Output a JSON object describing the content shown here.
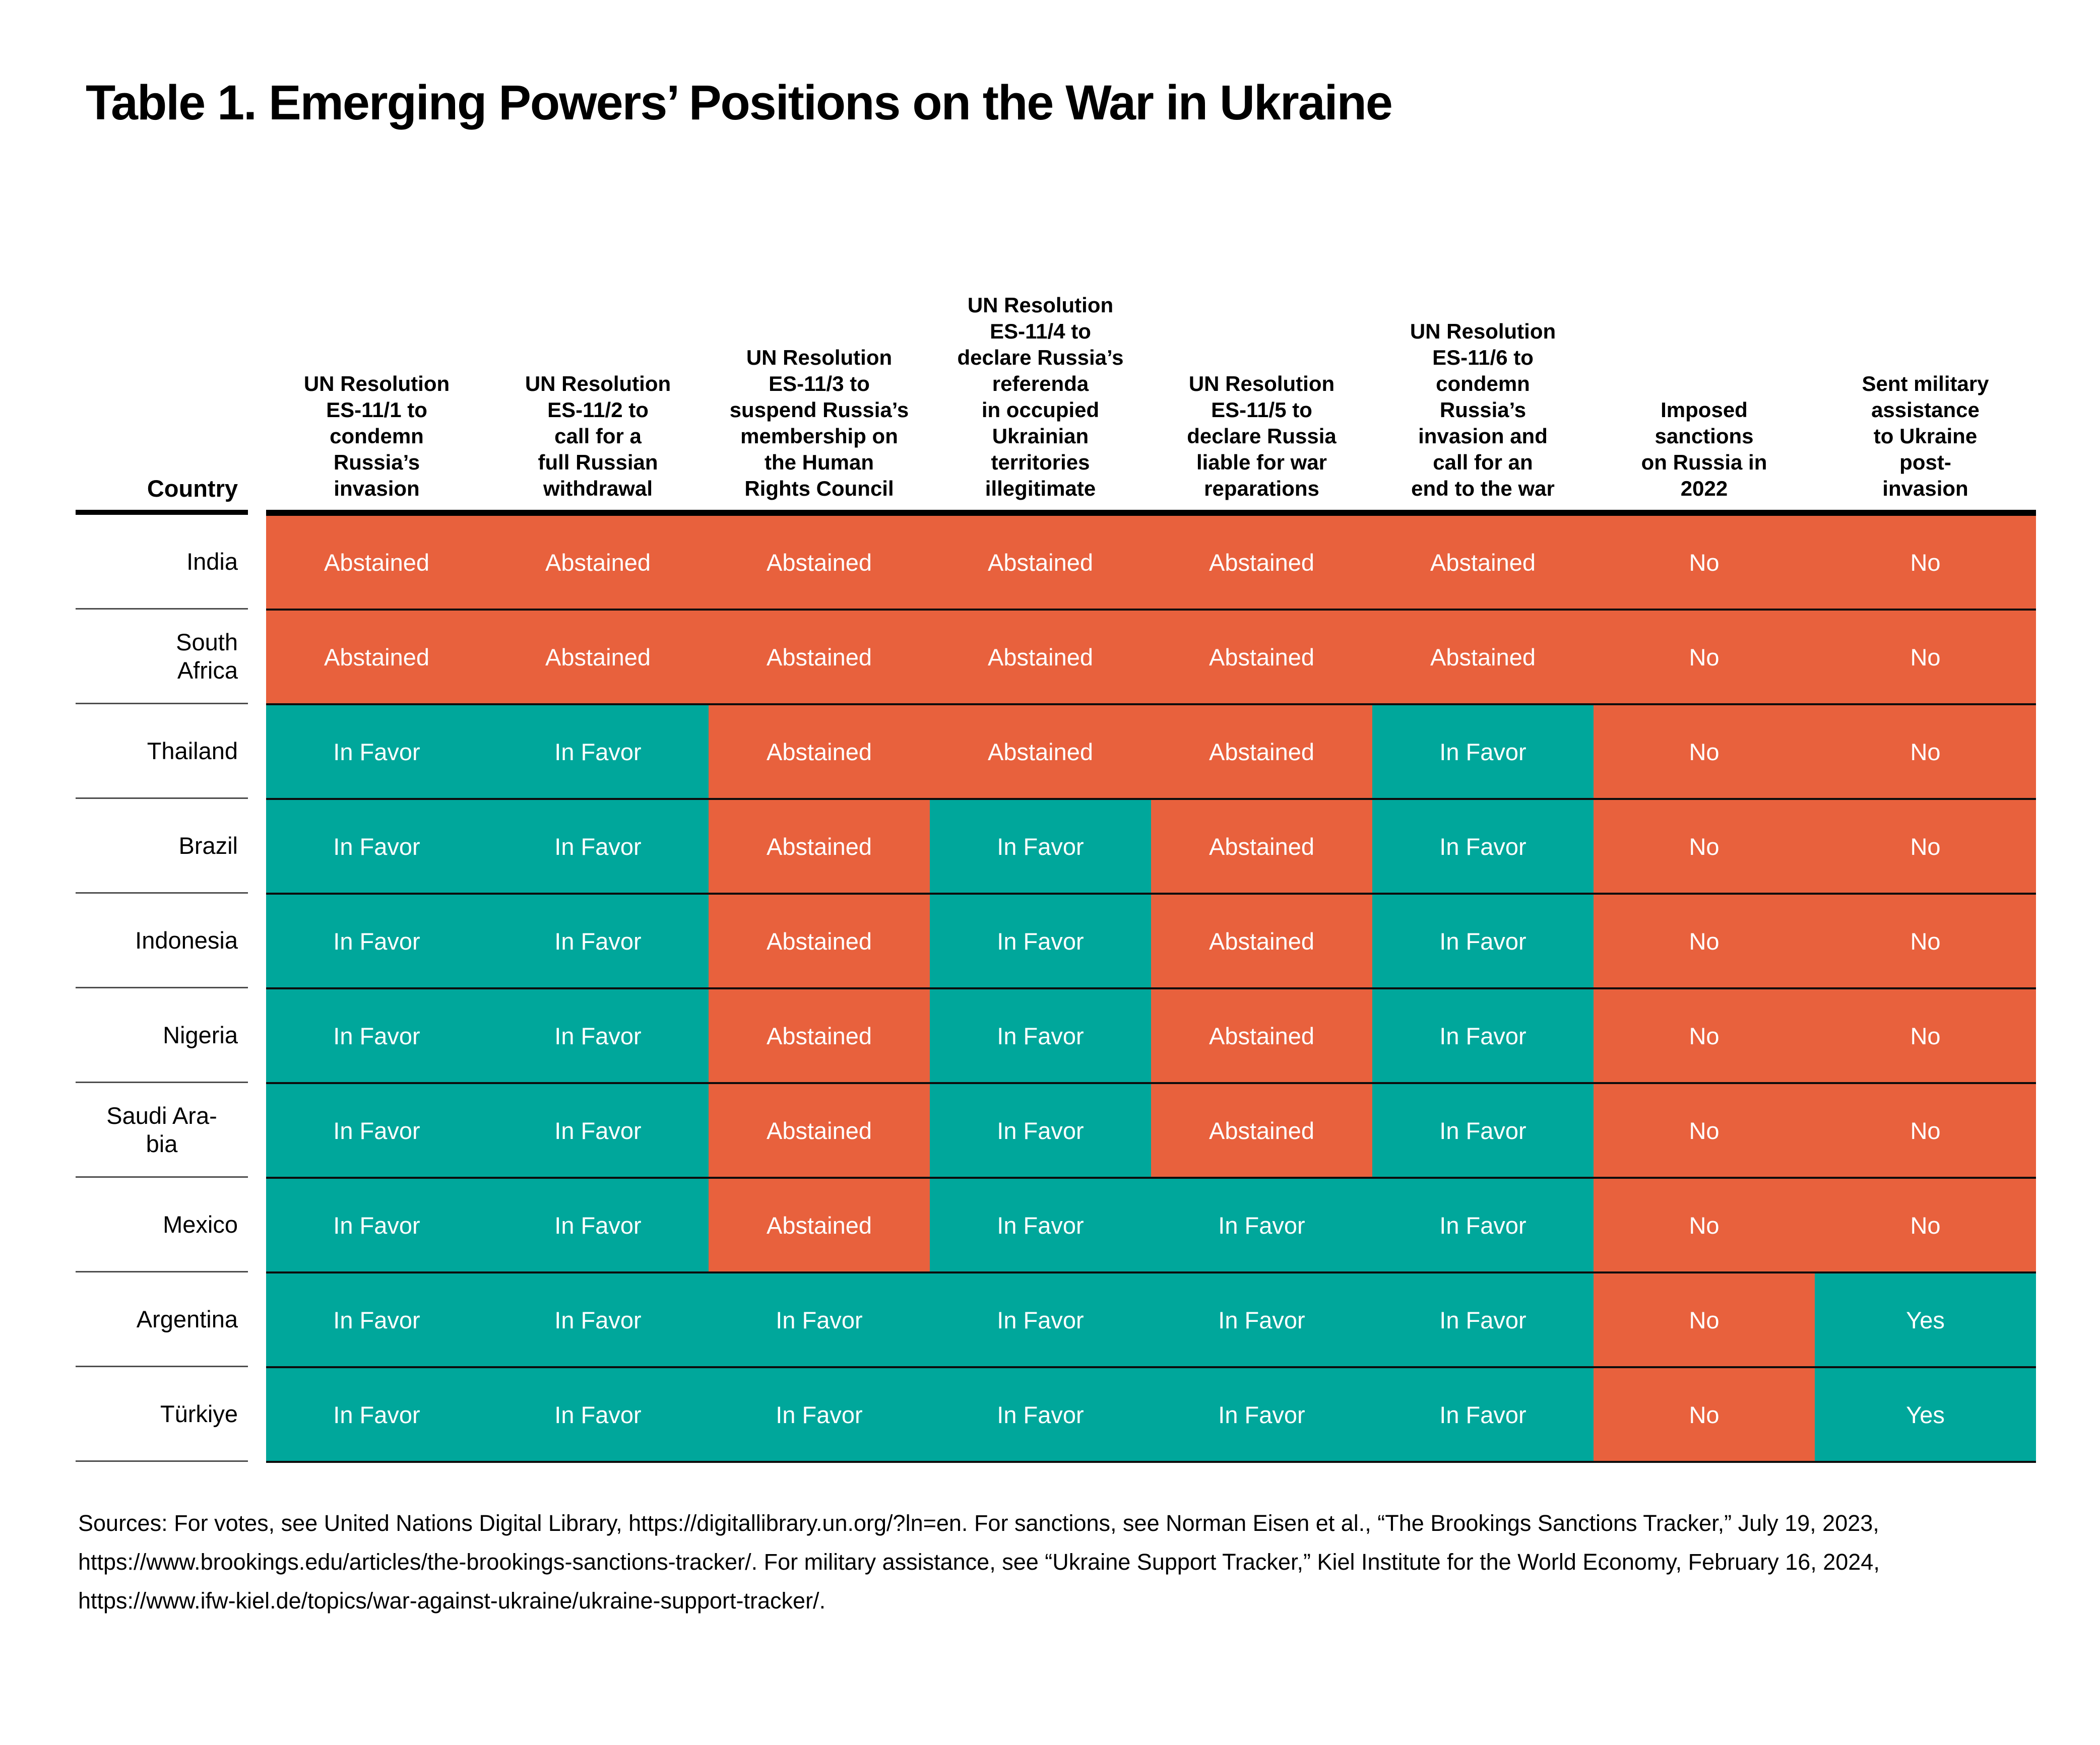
{
  "title": "Table 1. Emerging Powers’ Positions on the War in Ukraine",
  "colors": {
    "in-favor": "#00A79B",
    "yes": "#00A79B",
    "abstained": "#E8613D",
    "no": "#E8613D"
  },
  "table": {
    "country_header": "Country",
    "columns": [
      "UN Resolution\nES-11/1 to\ncondemn\nRussia’s\ninvasion",
      "UN Resolution\nES-11/2 to\ncall for a\nfull Russian\nwithdrawal",
      "UN Resolution\nES-11/3 to\nsuspend Russia’s\nmembership on\nthe Human\nRights Council",
      "UN Resolution\nES-11/4 to\ndeclare Russia’s\nreferenda\nin occupied\nUkrainian\nterritories\nillegitimate",
      "UN Resolution\nES-11/5 to\ndeclare Russia\nliable for war\nreparations",
      "UN Resolution\nES-11/6 to\ncondemn\nRussia’s\ninvasion and\ncall for an\nend to the war",
      "Imposed\nsanctions\non Russia in\n2022",
      "Sent military\nassistance\nto Ukraine\npost-\ninvasion"
    ],
    "rows": [
      {
        "country": "India",
        "cells": [
          {
            "label": "Abstained",
            "status": "abstained"
          },
          {
            "label": "Abstained",
            "status": "abstained"
          },
          {
            "label": "Abstained",
            "status": "abstained"
          },
          {
            "label": "Abstained",
            "status": "abstained"
          },
          {
            "label": "Abstained",
            "status": "abstained"
          },
          {
            "label": "Abstained",
            "status": "abstained"
          },
          {
            "label": "No",
            "status": "no"
          },
          {
            "label": "No",
            "status": "no"
          }
        ]
      },
      {
        "country": "South\nAfrica",
        "cells": [
          {
            "label": "Abstained",
            "status": "abstained"
          },
          {
            "label": "Abstained",
            "status": "abstained"
          },
          {
            "label": "Abstained",
            "status": "abstained"
          },
          {
            "label": "Abstained",
            "status": "abstained"
          },
          {
            "label": "Abstained",
            "status": "abstained"
          },
          {
            "label": "Abstained",
            "status": "abstained"
          },
          {
            "label": "No",
            "status": "no"
          },
          {
            "label": "No",
            "status": "no"
          }
        ]
      },
      {
        "country": "Thailand",
        "cells": [
          {
            "label": "In Favor",
            "status": "in-favor"
          },
          {
            "label": "In Favor",
            "status": "in-favor"
          },
          {
            "label": "Abstained",
            "status": "abstained"
          },
          {
            "label": "Abstained",
            "status": "abstained"
          },
          {
            "label": "Abstained",
            "status": "abstained"
          },
          {
            "label": "In Favor",
            "status": "in-favor"
          },
          {
            "label": "No",
            "status": "no"
          },
          {
            "label": "No",
            "status": "no"
          }
        ]
      },
      {
        "country": "Brazil",
        "cells": [
          {
            "label": "In Favor",
            "status": "in-favor"
          },
          {
            "label": "In Favor",
            "status": "in-favor"
          },
          {
            "label": "Abstained",
            "status": "abstained"
          },
          {
            "label": "In Favor",
            "status": "in-favor"
          },
          {
            "label": "Abstained",
            "status": "abstained"
          },
          {
            "label": "In Favor",
            "status": "in-favor"
          },
          {
            "label": "No",
            "status": "no"
          },
          {
            "label": "No",
            "status": "no"
          }
        ]
      },
      {
        "country": "Indonesia",
        "cells": [
          {
            "label": "In Favor",
            "status": "in-favor"
          },
          {
            "label": "In Favor",
            "status": "in-favor"
          },
          {
            "label": "Abstained",
            "status": "abstained"
          },
          {
            "label": "In Favor",
            "status": "in-favor"
          },
          {
            "label": "Abstained",
            "status": "abstained"
          },
          {
            "label": "In Favor",
            "status": "in-favor"
          },
          {
            "label": "No",
            "status": "no"
          },
          {
            "label": "No",
            "status": "no"
          }
        ]
      },
      {
        "country": "Nigeria",
        "cells": [
          {
            "label": "In Favor",
            "status": "in-favor"
          },
          {
            "label": "In Favor",
            "status": "in-favor"
          },
          {
            "label": "Abstained",
            "status": "abstained"
          },
          {
            "label": "In Favor",
            "status": "in-favor"
          },
          {
            "label": "Abstained",
            "status": "abstained"
          },
          {
            "label": "In Favor",
            "status": "in-favor"
          },
          {
            "label": "No",
            "status": "no"
          },
          {
            "label": "No",
            "status": "no"
          }
        ]
      },
      {
        "country": "Saudi Ara-\nbia",
        "cells": [
          {
            "label": "In Favor",
            "status": "in-favor"
          },
          {
            "label": "In Favor",
            "status": "in-favor"
          },
          {
            "label": "Abstained",
            "status": "abstained"
          },
          {
            "label": "In Favor",
            "status": "in-favor"
          },
          {
            "label": "Abstained",
            "status": "abstained"
          },
          {
            "label": "In Favor",
            "status": "in-favor"
          },
          {
            "label": "No",
            "status": "no"
          },
          {
            "label": "No",
            "status": "no"
          }
        ]
      },
      {
        "country": "Mexico",
        "cells": [
          {
            "label": "In Favor",
            "status": "in-favor"
          },
          {
            "label": "In Favor",
            "status": "in-favor"
          },
          {
            "label": "Abstained",
            "status": "abstained"
          },
          {
            "label": "In Favor",
            "status": "in-favor"
          },
          {
            "label": "In Favor",
            "status": "in-favor"
          },
          {
            "label": "In Favor",
            "status": "in-favor"
          },
          {
            "label": "No",
            "status": "no"
          },
          {
            "label": "No",
            "status": "no"
          }
        ]
      },
      {
        "country": "Argentina",
        "cells": [
          {
            "label": "In Favor",
            "status": "in-favor"
          },
          {
            "label": "In Favor",
            "status": "in-favor"
          },
          {
            "label": "In Favor",
            "status": "in-favor"
          },
          {
            "label": "In Favor",
            "status": "in-favor"
          },
          {
            "label": "In Favor",
            "status": "in-favor"
          },
          {
            "label": "In Favor",
            "status": "in-favor"
          },
          {
            "label": "No",
            "status": "no"
          },
          {
            "label": "Yes",
            "status": "yes"
          }
        ]
      },
      {
        "country": "Türkiye",
        "cells": [
          {
            "label": "In Favor",
            "status": "in-favor"
          },
          {
            "label": "In Favor",
            "status": "in-favor"
          },
          {
            "label": "In Favor",
            "status": "in-favor"
          },
          {
            "label": "In Favor",
            "status": "in-favor"
          },
          {
            "label": "In Favor",
            "status": "in-favor"
          },
          {
            "label": "In Favor",
            "status": "in-favor"
          },
          {
            "label": "No",
            "status": "no"
          },
          {
            "label": "Yes",
            "status": "yes"
          }
        ]
      }
    ]
  },
  "chart_data": {
    "type": "table",
    "title": "Table 1. Emerging Powers’ Positions on the War in Ukraine",
    "columns": [
      "Country",
      "UN Resolution ES-11/1 to condemn Russia’s invasion",
      "UN Resolution ES-11/2 to call for a full Russian withdrawal",
      "UN Resolution ES-11/3 to suspend Russia’s membership on the Human Rights Council",
      "UN Resolution ES-11/4 to declare Russia’s referenda in occupied Ukrainian territories illegitimate",
      "UN Resolution ES-11/5 to declare Russia liable for war reparations",
      "UN Resolution ES-11/6 to condemn Russia’s invasion and call for an end to the war",
      "Imposed sanctions on Russia in 2022",
      "Sent military assistance to Ukraine post-invasion"
    ],
    "rows": [
      [
        "India",
        "Abstained",
        "Abstained",
        "Abstained",
        "Abstained",
        "Abstained",
        "Abstained",
        "No",
        "No"
      ],
      [
        "South Africa",
        "Abstained",
        "Abstained",
        "Abstained",
        "Abstained",
        "Abstained",
        "Abstained",
        "No",
        "No"
      ],
      [
        "Thailand",
        "In Favor",
        "In Favor",
        "Abstained",
        "Abstained",
        "Abstained",
        "In Favor",
        "No",
        "No"
      ],
      [
        "Brazil",
        "In Favor",
        "In Favor",
        "Abstained",
        "In Favor",
        "Abstained",
        "In Favor",
        "No",
        "No"
      ],
      [
        "Indonesia",
        "In Favor",
        "In Favor",
        "Abstained",
        "In Favor",
        "Abstained",
        "In Favor",
        "No",
        "No"
      ],
      [
        "Nigeria",
        "In Favor",
        "In Favor",
        "Abstained",
        "In Favor",
        "Abstained",
        "In Favor",
        "No",
        "No"
      ],
      [
        "Saudi Arabia",
        "In Favor",
        "In Favor",
        "Abstained",
        "In Favor",
        "Abstained",
        "In Favor",
        "No",
        "No"
      ],
      [
        "Mexico",
        "In Favor",
        "In Favor",
        "Abstained",
        "In Favor",
        "In Favor",
        "In Favor",
        "No",
        "No"
      ],
      [
        "Argentina",
        "In Favor",
        "In Favor",
        "In Favor",
        "In Favor",
        "In Favor",
        "In Favor",
        "No",
        "Yes"
      ],
      [
        "Türkiye",
        "In Favor",
        "In Favor",
        "In Favor",
        "In Favor",
        "In Favor",
        "In Favor",
        "No",
        "Yes"
      ]
    ],
    "cell_color_coding": {
      "In Favor / Yes": "#00A79B",
      "Abstained / No": "#E8613D"
    }
  },
  "sources": "Sources: For votes, see United Nations Digital Library, https://digitallibrary.un.org/?ln=en. For sanctions, see Norman Eisen et al., “The Brookings Sanctions Tracker,” July 19, 2023, https://www.brookings.edu/articles/the-brookings-sanctions-tracker/. For military assistance, see “Ukraine Support Tracker,” Kiel Institute for the World Economy, February 16, 2024, https://www.ifw-kiel.de/topics/war-against-ukraine/ukraine-support-tracker/."
}
